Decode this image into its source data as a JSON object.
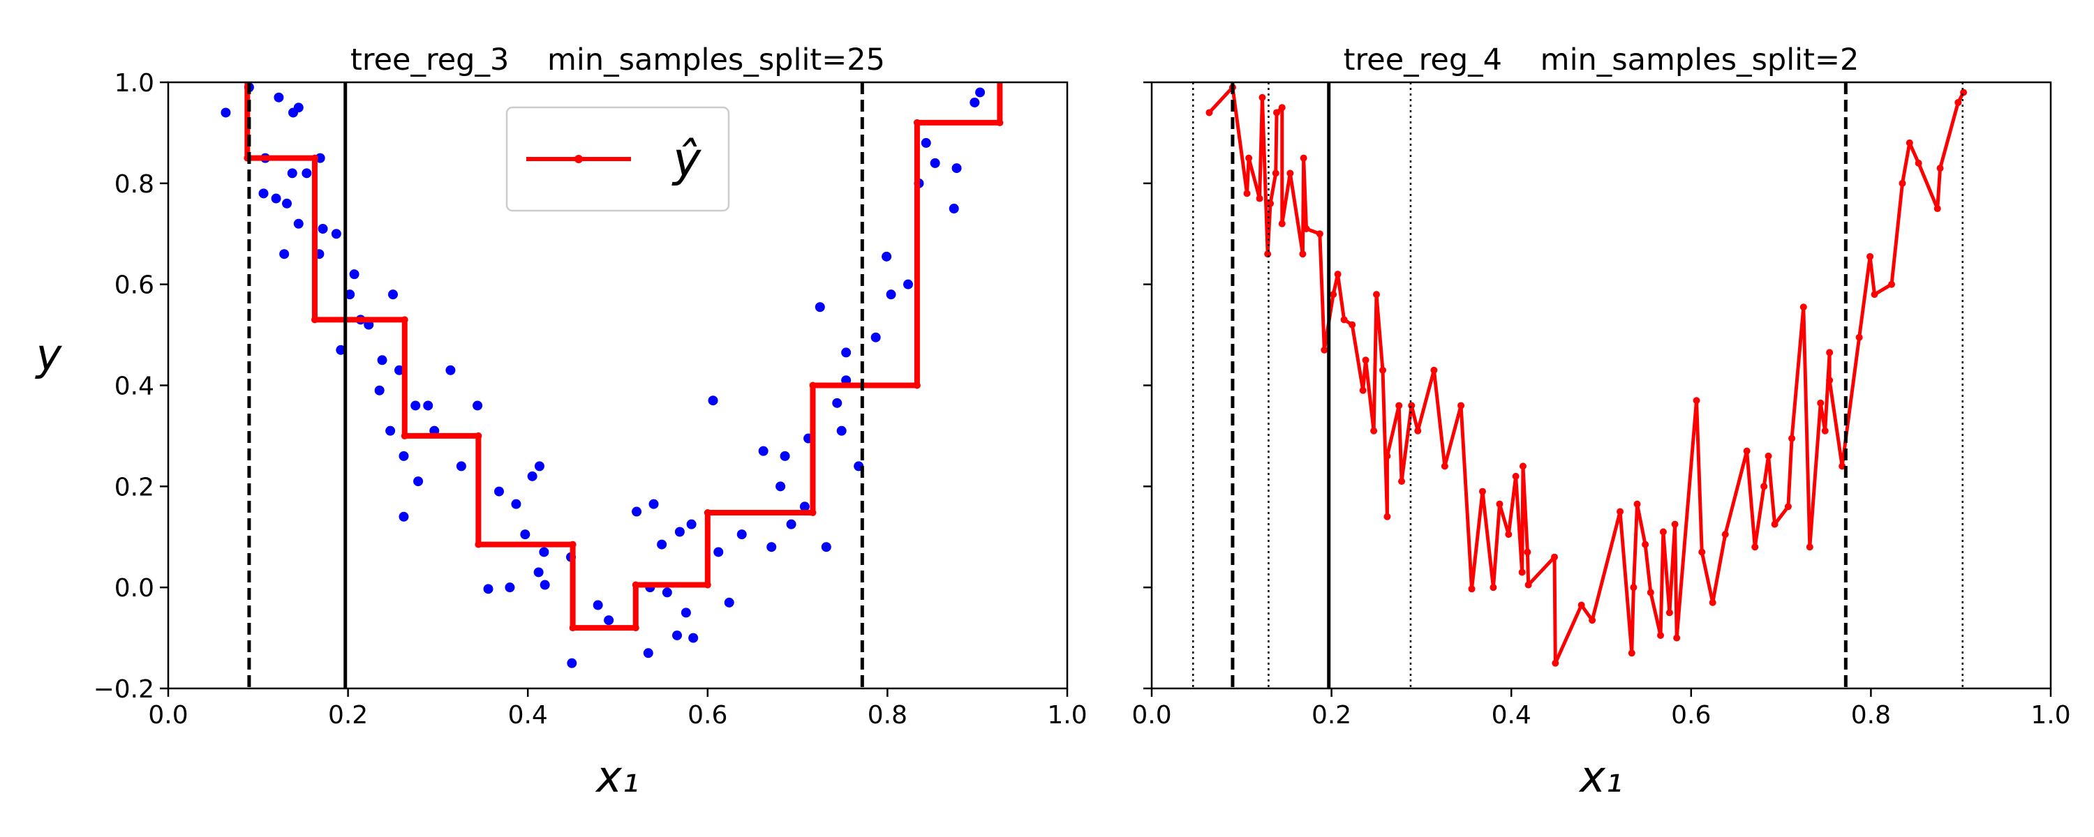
{
  "chart_data": [
    {
      "type": "line",
      "title": "tree_reg_3    min_samples_split=25",
      "xlabel": "x₁",
      "ylabel": "y",
      "xlim": [
        0,
        1
      ],
      "ylim": [
        -0.2,
        1
      ],
      "xticks": [
        {
          "value": 0,
          "label": "0.0"
        },
        {
          "value": 0.2,
          "label": "0.2"
        },
        {
          "value": 0.4,
          "label": "0.4"
        },
        {
          "value": 0.6,
          "label": "0.6"
        },
        {
          "value": 0.8,
          "label": "0.8"
        },
        {
          "value": 1,
          "label": "1.0"
        }
      ],
      "yticks": [
        {
          "value": -0.2,
          "label": "−0.2"
        },
        {
          "value": 0,
          "label": "0.0"
        },
        {
          "value": 0.2,
          "label": "0.2"
        },
        {
          "value": 0.4,
          "label": "0.4"
        },
        {
          "value": 0.6,
          "label": "0.6"
        },
        {
          "value": 0.8,
          "label": "0.8"
        },
        {
          "value": 1,
          "label": "1.0"
        }
      ],
      "show_ytick_labels": true,
      "legend": "upper center",
      "series": [
        {
          "type": "scatter",
          "color": "#0000ff",
          "x": [
            0.064,
            0.09,
            0.106,
            0.108,
            0.12,
            0.123,
            0.129,
            0.132,
            0.138,
            0.139,
            0.145,
            0.145,
            0.154,
            0.168,
            0.169,
            0.172,
            0.187,
            0.192,
            0.202,
            0.207,
            0.214,
            0.223,
            0.235,
            0.238,
            0.247,
            0.25,
            0.257,
            0.262,
            0.262,
            0.275,
            0.278,
            0.289,
            0.296,
            0.314,
            0.326,
            0.344,
            0.356,
            0.368,
            0.38,
            0.387,
            0.397,
            0.405,
            0.412,
            0.413,
            0.418,
            0.419,
            0.448,
            0.449,
            0.478,
            0.49,
            0.521,
            0.534,
            0.536,
            0.54,
            0.549,
            0.555,
            0.566,
            0.569,
            0.576,
            0.582,
            0.584,
            0.606,
            0.612,
            0.624,
            0.638,
            0.662,
            0.671,
            0.681,
            0.686,
            0.693,
            0.708,
            0.712,
            0.725,
            0.732,
            0.744,
            0.749,
            0.754,
            0.754,
            0.768,
            0.787,
            0.799,
            0.804,
            0.823,
            0.835,
            0.843,
            0.853,
            0.874,
            0.877,
            0.897,
            0.903
          ],
          "values": [
            0.94,
            0.99,
            0.78,
            0.85,
            0.77,
            0.97,
            0.66,
            0.76,
            0.82,
            0.94,
            0.95,
            0.72,
            0.82,
            0.66,
            0.85,
            0.71,
            0.7,
            0.47,
            0.58,
            0.62,
            0.53,
            0.52,
            0.39,
            0.45,
            0.31,
            0.58,
            0.43,
            0.14,
            0.26,
            0.36,
            0.21,
            0.36,
            0.31,
            0.43,
            0.24,
            0.36,
            -0.003,
            0.19,
            0,
            0.165,
            0.105,
            0.22,
            0.03,
            0.24,
            0.07,
            0.005,
            0.06,
            -0.15,
            -0.035,
            -0.065,
            0.15,
            -0.13,
            0,
            0.165,
            0.085,
            -0.01,
            -0.095,
            0.11,
            -0.05,
            0.125,
            -0.1,
            0.37,
            0.07,
            -0.03,
            0.105,
            0.27,
            0.08,
            0.2,
            0.26,
            0.125,
            0.16,
            0.295,
            0.555,
            0.08,
            0.365,
            0.31,
            0.465,
            0.41,
            0.24,
            0.495,
            0.655,
            0.58,
            0.6,
            0.8,
            0.88,
            0.84,
            0.75,
            0.83,
            0.96,
            0.98
          ]
        },
        {
          "type": "line",
          "name": "ŷ",
          "color": "#ff0000",
          "x": [
            0.088,
            0.088,
            0.163,
            0.163,
            0.263,
            0.263,
            0.345,
            0.345,
            0.45,
            0.45,
            0.52,
            0.52,
            0.6,
            0.6,
            0.717,
            0.717,
            0.833,
            0.833,
            0.925,
            0.925
          ],
          "values": [
            1.05,
            0.85,
            0.85,
            0.53,
            0.53,
            0.3,
            0.3,
            0.085,
            0.085,
            -0.08,
            -0.08,
            0.005,
            0.005,
            0.148,
            0.148,
            0.4,
            0.4,
            0.92,
            0.92,
            1.05
          ]
        }
      ],
      "vlines": [
        {
          "x": 0.09,
          "style": "dashed"
        },
        {
          "x": 0.197,
          "style": "solid"
        },
        {
          "x": 0.772,
          "style": "dashed"
        }
      ]
    },
    {
      "type": "line",
      "title": "tree_reg_4    min_samples_split=2",
      "xlabel": "x₁",
      "xlim": [
        0,
        1
      ],
      "ylim": [
        -0.2,
        1
      ],
      "xticks": [
        {
          "value": 0,
          "label": "0.0"
        },
        {
          "value": 0.2,
          "label": "0.2"
        },
        {
          "value": 0.4,
          "label": "0.4"
        },
        {
          "value": 0.6,
          "label": "0.6"
        },
        {
          "value": 0.8,
          "label": "0.8"
        },
        {
          "value": 1,
          "label": "1.0"
        }
      ],
      "yticks": [
        -0.2,
        0,
        0.2,
        0.4,
        0.6,
        0.8,
        1
      ],
      "show_ytick_labels": false,
      "series": [
        {
          "type": "line",
          "color": "#ff0000",
          "x": [
            0.064,
            0.09,
            0.106,
            0.108,
            0.12,
            0.123,
            0.129,
            0.132,
            0.138,
            0.139,
            0.145,
            0.145,
            0.154,
            0.168,
            0.169,
            0.172,
            0.187,
            0.192,
            0.202,
            0.207,
            0.214,
            0.223,
            0.235,
            0.238,
            0.247,
            0.25,
            0.257,
            0.262,
            0.262,
            0.275,
            0.278,
            0.289,
            0.296,
            0.314,
            0.326,
            0.344,
            0.356,
            0.368,
            0.38,
            0.387,
            0.397,
            0.405,
            0.412,
            0.413,
            0.418,
            0.419,
            0.448,
            0.449,
            0.478,
            0.49,
            0.521,
            0.534,
            0.536,
            0.54,
            0.549,
            0.555,
            0.566,
            0.569,
            0.576,
            0.582,
            0.584,
            0.606,
            0.612,
            0.624,
            0.638,
            0.662,
            0.671,
            0.681,
            0.686,
            0.693,
            0.708,
            0.712,
            0.725,
            0.732,
            0.744,
            0.749,
            0.754,
            0.754,
            0.768,
            0.787,
            0.799,
            0.804,
            0.823,
            0.835,
            0.843,
            0.853,
            0.874,
            0.877,
            0.897,
            0.903
          ],
          "values": [
            0.94,
            0.99,
            0.78,
            0.85,
            0.77,
            0.97,
            0.66,
            0.76,
            0.82,
            0.94,
            0.95,
            0.72,
            0.82,
            0.66,
            0.85,
            0.71,
            0.7,
            0.47,
            0.58,
            0.62,
            0.53,
            0.52,
            0.39,
            0.45,
            0.31,
            0.58,
            0.43,
            0.14,
            0.26,
            0.36,
            0.21,
            0.36,
            0.31,
            0.43,
            0.24,
            0.36,
            -0.003,
            0.19,
            0,
            0.165,
            0.105,
            0.22,
            0.03,
            0.24,
            0.07,
            0.005,
            0.06,
            -0.15,
            -0.035,
            -0.065,
            0.15,
            -0.13,
            0,
            0.165,
            0.085,
            -0.01,
            -0.095,
            0.11,
            -0.05,
            0.125,
            -0.1,
            0.37,
            0.07,
            -0.03,
            0.105,
            0.27,
            0.08,
            0.2,
            0.26,
            0.125,
            0.16,
            0.295,
            0.555,
            0.08,
            0.365,
            0.31,
            0.465,
            0.41,
            0.24,
            0.495,
            0.655,
            0.58,
            0.6,
            0.8,
            0.88,
            0.84,
            0.75,
            0.83,
            0.96,
            0.98
          ]
        }
      ],
      "vlines": [
        {
          "x": 0.046,
          "style": "dotted"
        },
        {
          "x": 0.09,
          "style": "dashed"
        },
        {
          "x": 0.13,
          "style": "dotted"
        },
        {
          "x": 0.197,
          "style": "solid"
        },
        {
          "x": 0.288,
          "style": "dotted"
        },
        {
          "x": 0.772,
          "style": "dashed"
        },
        {
          "x": 0.902,
          "style": "dotted"
        }
      ]
    }
  ]
}
